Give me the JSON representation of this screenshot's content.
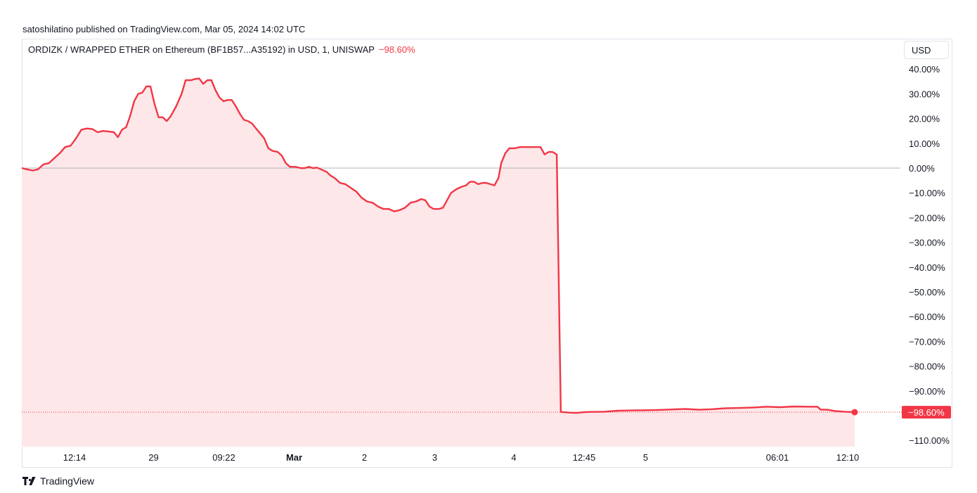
{
  "header": {
    "published": "satoshilatino published on TradingView.com, Mar 05, 2024 14:02 UTC"
  },
  "legend": {
    "symbol": "ORDIZK / WRAPPED ETHER on Ethereum (BF1B57...A35192) in USD, 1, UNISWAP",
    "change": "−98.60%"
  },
  "currency_button": {
    "label": "USD"
  },
  "footer": {
    "brand": "TradingView",
    "brand_icon": "tradingview-logo-icon"
  },
  "colors": {
    "line": "#f23645",
    "fill": "#fde7e9",
    "zero_line": "#b2b5be",
    "last_label_bg": "#f23645"
  },
  "chart_data": {
    "type": "area",
    "title": "",
    "xlabel": "",
    "ylabel": "",
    "ylim": [
      -112,
      44
    ],
    "y_ticks": [
      "40.00%",
      "30.00%",
      "20.00%",
      "10.00%",
      "0.00%",
      "−10.00%",
      "−20.00%",
      "−30.00%",
      "−40.00%",
      "−50.00%",
      "−60.00%",
      "−70.00%",
      "−80.00%",
      "−90.00%",
      "−110.00%"
    ],
    "y_tick_values": [
      40,
      30,
      20,
      10,
      0,
      -10,
      -20,
      -30,
      -40,
      -50,
      -60,
      -70,
      -80,
      -90,
      -110
    ],
    "x_ticks": [
      {
        "label": "12:14",
        "pos": 0.06
      },
      {
        "label": "29",
        "pos": 0.15
      },
      {
        "label": "09:22",
        "pos": 0.23
      },
      {
        "label": "Mar",
        "pos": 0.31,
        "bold": true
      },
      {
        "label": "2",
        "pos": 0.39
      },
      {
        "label": "3",
        "pos": 0.47
      },
      {
        "label": "4",
        "pos": 0.56
      },
      {
        "label": "12:45",
        "pos": 0.64
      },
      {
        "label": "5",
        "pos": 0.71
      },
      {
        "label": "06:01",
        "pos": 0.86
      },
      {
        "label": "12:10",
        "pos": 0.94
      }
    ],
    "last_value_label": "−98.60%",
    "last_value": -98.6,
    "series": [
      {
        "values": [
          [
            0.0,
            0.0
          ],
          [
            0.008,
            -0.5
          ],
          [
            0.016,
            -1.0
          ],
          [
            0.024,
            -0.5
          ],
          [
            0.032,
            1.5
          ],
          [
            0.04,
            2.0
          ],
          [
            0.048,
            4.0
          ],
          [
            0.056,
            6.0
          ],
          [
            0.064,
            8.5
          ],
          [
            0.072,
            9.0
          ],
          [
            0.08,
            12.0
          ],
          [
            0.088,
            15.5
          ],
          [
            0.096,
            16.0
          ],
          [
            0.104,
            15.8
          ],
          [
            0.112,
            14.5
          ],
          [
            0.12,
            15.0
          ],
          [
            0.128,
            14.8
          ],
          [
            0.136,
            14.5
          ],
          [
            0.142,
            12.5
          ],
          [
            0.148,
            15.5
          ],
          [
            0.154,
            16.5
          ],
          [
            0.16,
            21.0
          ],
          [
            0.166,
            27.0
          ],
          [
            0.172,
            30.0
          ],
          [
            0.178,
            30.5
          ],
          [
            0.184,
            33.0
          ],
          [
            0.19,
            33.0
          ],
          [
            0.196,
            26.0
          ],
          [
            0.202,
            20.5
          ],
          [
            0.208,
            20.5
          ],
          [
            0.214,
            19.0
          ],
          [
            0.22,
            21.0
          ],
          [
            0.228,
            25.0
          ],
          [
            0.236,
            30.0
          ],
          [
            0.242,
            35.5
          ],
          [
            0.25,
            35.5
          ],
          [
            0.256,
            36.0
          ],
          [
            0.262,
            36.2
          ],
          [
            0.268,
            34.0
          ],
          [
            0.274,
            35.5
          ],
          [
            0.28,
            35.5
          ],
          [
            0.286,
            31.5
          ],
          [
            0.292,
            28.5
          ],
          [
            0.298,
            27.0
          ],
          [
            0.304,
            27.5
          ],
          [
            0.31,
            27.5
          ],
          [
            0.316,
            25.0
          ],
          [
            0.322,
            22.0
          ],
          [
            0.328,
            19.5
          ],
          [
            0.334,
            19.0
          ],
          [
            0.34,
            18.0
          ],
          [
            0.346,
            16.0
          ],
          [
            0.352,
            14.0
          ],
          [
            0.358,
            12.0
          ],
          [
            0.364,
            8.0
          ],
          [
            0.37,
            7.0
          ],
          [
            0.378,
            6.5
          ],
          [
            0.384,
            5.0
          ],
          [
            0.39,
            2.0
          ],
          [
            0.396,
            0.5
          ],
          [
            0.404,
            0.5
          ],
          [
            0.412,
            0.0
          ],
          [
            0.418,
            0.0
          ],
          [
            0.424,
            0.5
          ],
          [
            0.43,
            0.0
          ],
          [
            0.436,
            0.2
          ],
          [
            0.442,
            -0.5
          ],
          [
            0.45,
            -1.5
          ],
          [
            0.456,
            -3.0
          ],
          [
            0.462,
            -4.0
          ],
          [
            0.47,
            -6.0
          ],
          [
            0.478,
            -6.5
          ],
          [
            0.486,
            -8.0
          ],
          [
            0.494,
            -9.5
          ],
          [
            0.502,
            -12.0
          ],
          [
            0.51,
            -13.5
          ],
          [
            0.518,
            -14.0
          ],
          [
            0.526,
            -15.5
          ],
          [
            0.534,
            -16.5
          ],
          [
            0.542,
            -16.5
          ],
          [
            0.55,
            -17.5
          ],
          [
            0.558,
            -17.0
          ],
          [
            0.566,
            -16.0
          ],
          [
            0.574,
            -14.0
          ],
          [
            0.582,
            -13.5
          ],
          [
            0.59,
            -12.5
          ],
          [
            0.596,
            -13.0
          ],
          [
            0.602,
            -15.5
          ],
          [
            0.608,
            -16.5
          ],
          [
            0.616,
            -16.5
          ],
          [
            0.622,
            -16.0
          ],
          [
            0.628,
            -13.0
          ],
          [
            0.634,
            -10.0
          ],
          [
            0.642,
            -8.5
          ],
          [
            0.65,
            -7.5
          ],
          [
            0.656,
            -7.0
          ],
          [
            0.662,
            -5.5
          ],
          [
            0.668,
            -5.5
          ],
          [
            0.674,
            -6.5
          ],
          [
            0.68,
            -6.0
          ],
          [
            0.686,
            -6.0
          ],
          [
            0.692,
            -6.5
          ],
          [
            0.698,
            -7.0
          ],
          [
            0.704,
            -4.0
          ],
          [
            0.708,
            2.0
          ],
          [
            0.714,
            6.0
          ],
          [
            0.72,
            8.0
          ],
          [
            0.728,
            8.0
          ],
          [
            0.736,
            8.5
          ],
          [
            0.744,
            8.5
          ],
          [
            0.752,
            8.5
          ],
          [
            0.76,
            8.5
          ],
          [
            0.766,
            8.5
          ],
          [
            0.772,
            5.5
          ],
          [
            0.778,
            6.5
          ],
          [
            0.784,
            6.5
          ],
          [
            0.79,
            5.5
          ],
          [
            0.796,
            -98.5
          ],
          [
            0.81,
            -98.8
          ],
          [
            0.82,
            -98.9
          ],
          [
            0.83,
            -98.6
          ],
          [
            0.84,
            -98.5
          ],
          [
            0.86,
            -98.4
          ],
          [
            0.88,
            -98.0
          ],
          [
            0.9,
            -97.9
          ],
          [
            0.92,
            -97.8
          ],
          [
            0.94,
            -97.7
          ],
          [
            0.96,
            -97.5
          ],
          [
            0.98,
            -97.3
          ],
          [
            1.0,
            -97.6
          ],
          [
            1.02,
            -97.4
          ],
          [
            1.04,
            -97.0
          ],
          [
            1.06,
            -96.9
          ],
          [
            1.08,
            -96.7
          ],
          [
            1.1,
            -96.4
          ],
          [
            1.12,
            -96.6
          ],
          [
            1.14,
            -96.3
          ],
          [
            1.16,
            -96.4
          ],
          [
            1.175,
            -96.4
          ],
          [
            1.18,
            -97.6
          ],
          [
            1.19,
            -97.6
          ],
          [
            1.2,
            -98.1
          ],
          [
            1.215,
            -98.4
          ],
          [
            1.23,
            -98.6
          ]
        ]
      }
    ]
  }
}
